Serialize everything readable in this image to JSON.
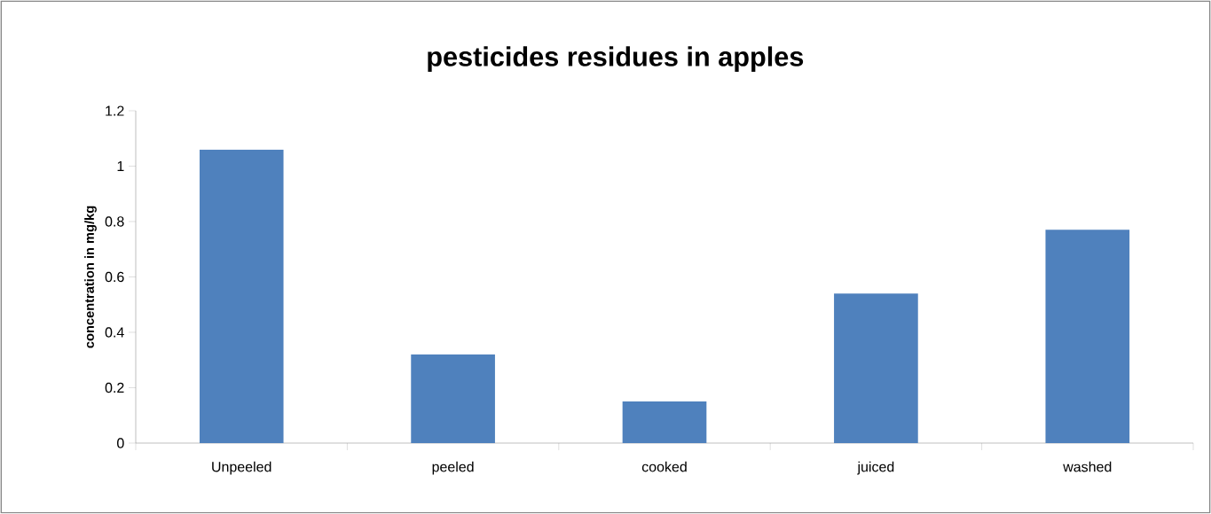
{
  "chart_data": {
    "type": "bar",
    "title": "pesticides residues in apples",
    "ylabel": "concentration in mg/kg",
    "categories": [
      "Unpeeled",
      "peeled",
      "cooked",
      "juiced",
      "washed"
    ],
    "values": [
      1.06,
      0.32,
      0.15,
      0.54,
      0.77
    ],
    "color": "#4f81bd",
    "ylim": [
      0,
      1.2
    ],
    "yticks": [
      0,
      0.2,
      0.4,
      0.6,
      0.8,
      1,
      1.2
    ]
  }
}
